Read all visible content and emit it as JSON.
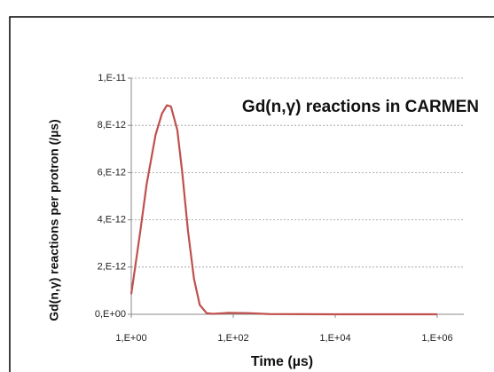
{
  "chart_data": {
    "type": "line",
    "title": "Gd(n,γ) reactions in CARMEN",
    "x_label": "Time (µs)",
    "y_label": "Gd(n,γ) reactions per protron  (/µs)",
    "x": [
      1,
      1.5,
      2,
      3,
      4,
      5,
      6,
      8,
      10,
      13,
      17,
      22,
      30,
      40,
      80,
      200,
      500,
      10000,
      1000000
    ],
    "series": [
      {
        "name": "Gd(n,γ) reactions",
        "color": "#c0504d",
        "values": [
          8.5e-13,
          3.5e-12,
          5.5e-12,
          7.6e-12,
          8.5e-12,
          8.85e-12,
          8.8e-12,
          7.8e-12,
          6e-12,
          3.5e-12,
          1.5e-12,
          4e-13,
          5e-14,
          2e-14,
          6e-14,
          5e-14,
          1e-14,
          0,
          0
        ]
      }
    ],
    "xscale": "log",
    "xlim": [
      1,
      1000000
    ],
    "xticks": [
      {
        "value": 1,
        "label": "1,E+00"
      },
      {
        "value": 100,
        "label": "1,E+02"
      },
      {
        "value": 10000,
        "label": "1,E+04"
      },
      {
        "value": 1000000,
        "label": "1,E+06"
      }
    ],
    "ylim": [
      0,
      1e-11
    ],
    "yticks": [
      {
        "value": 0,
        "label": "0,E+00"
      },
      {
        "value": 2e-12,
        "label": "2,E-12"
      },
      {
        "value": 4e-12,
        "label": "4,E-12"
      },
      {
        "value": 6e-12,
        "label": "6,E-12"
      },
      {
        "value": 8e-12,
        "label": "8,E-12"
      },
      {
        "value": 1e-11,
        "label": "1,E-11"
      }
    ],
    "grid": true
  }
}
